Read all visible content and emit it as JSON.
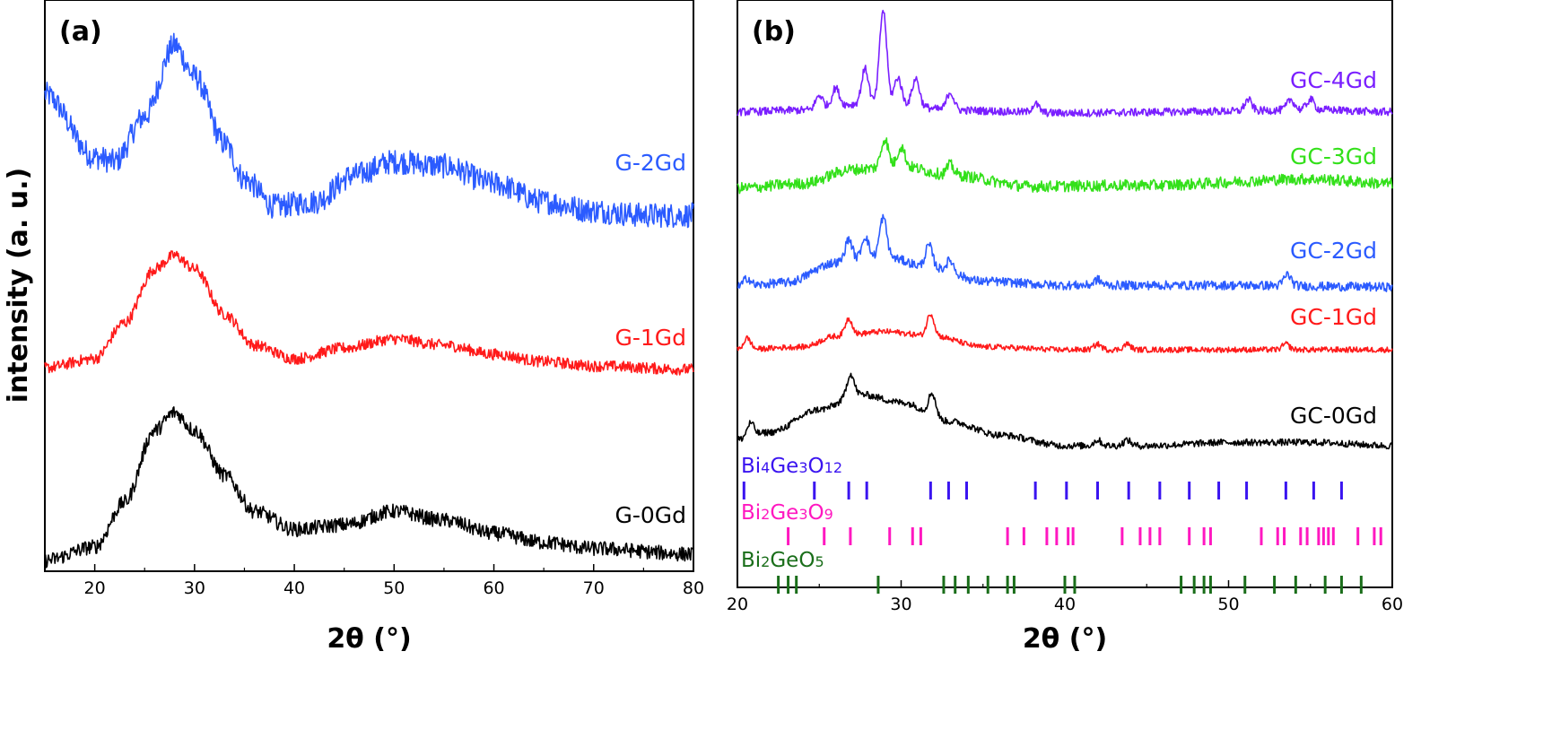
{
  "y_axis_label": "intensity (a. u.)",
  "chart_data": [
    {
      "type": "line",
      "panel": "(a)",
      "xlabel": "2θ (°)",
      "ylabel": "intensity (a. u.)",
      "xlim": [
        15,
        80
      ],
      "ylim": [
        0,
        100
      ],
      "xticks": [
        20,
        30,
        40,
        50,
        60,
        70,
        80
      ],
      "grid": false,
      "series": [
        {
          "name": "G-2Gd",
          "color": "#2b5bff",
          "noise": 2.2,
          "points": [
            [
              15,
              83.3
            ],
            [
              20,
              72.2
            ],
            [
              22,
              71.4
            ],
            [
              25,
              79.4
            ],
            [
              28,
              92
            ],
            [
              30,
              86.5
            ],
            [
              33,
              74.6
            ],
            [
              35,
              68.3
            ],
            [
              38,
              63.5
            ],
            [
              42,
              64.3
            ],
            [
              46,
              69
            ],
            [
              50,
              71.4
            ],
            [
              55,
              70.6
            ],
            [
              60,
              67.5
            ],
            [
              65,
              64.3
            ],
            [
              70,
              62.7
            ],
            [
              75,
              61.9
            ],
            [
              80,
              61.9
            ]
          ],
          "peaks": []
        },
        {
          "name": "G-1Gd",
          "color": "#ff1a1a",
          "noise": 1.0,
          "points": [
            [
              15,
              34.9
            ],
            [
              20,
              36.5
            ],
            [
              23,
              42.9
            ],
            [
              26,
              52.4
            ],
            [
              28,
              54.8
            ],
            [
              30,
              52.4
            ],
            [
              33,
              44.4
            ],
            [
              36,
              38.9
            ],
            [
              40,
              36.5
            ],
            [
              45,
              38.4
            ],
            [
              50,
              40
            ],
            [
              55,
              38.9
            ],
            [
              60,
              37.3
            ],
            [
              65,
              36
            ],
            [
              70,
              35.2
            ],
            [
              80,
              34.6
            ]
          ],
          "peaks": []
        },
        {
          "name": "G-0Gd",
          "color": "#000000",
          "noise": 1.3,
          "points": [
            [
              15,
              0.8
            ],
            [
              20,
              3.2
            ],
            [
              23,
              11.1
            ],
            [
              26,
              23.8
            ],
            [
              28,
              27
            ],
            [
              30,
              23.8
            ],
            [
              33,
              15.9
            ],
            [
              36,
              9.5
            ],
            [
              40,
              6.3
            ],
            [
              45,
              7.1
            ],
            [
              50,
              9.5
            ],
            [
              55,
              7.9
            ],
            [
              60,
              5.6
            ],
            [
              65,
              4
            ],
            [
              70,
              2.9
            ],
            [
              80,
              1.9
            ]
          ],
          "peaks": []
        }
      ]
    },
    {
      "type": "line",
      "panel": "(b)",
      "xlabel": "2θ (°)",
      "xlim": [
        20,
        60
      ],
      "ylim": [
        0,
        100
      ],
      "xticks": [
        20,
        30,
        40,
        50,
        60
      ],
      "grid": false,
      "series": [
        {
          "name": "GC-4Gd",
          "color": "#7a1fff",
          "noise": 0.7,
          "points": [
            [
              20,
              80.2
            ],
            [
              24,
              80.5
            ],
            [
              27,
              81.5
            ],
            [
              30,
              81.5
            ],
            [
              33,
              80.5
            ],
            [
              40,
              80
            ],
            [
              50,
              80.3
            ],
            [
              55,
              80.6
            ],
            [
              60,
              80.2
            ]
          ],
          "peaks": [
            [
              25,
              2.4
            ],
            [
              26,
              3.2
            ],
            [
              27.8,
              6.3
            ],
            [
              28.9,
              16.7
            ],
            [
              29.8,
              4.8
            ],
            [
              30.9,
              4.8
            ],
            [
              33,
              3.2
            ],
            [
              38.2,
              1.5
            ],
            [
              51.2,
              2
            ],
            [
              53.8,
              1.8
            ],
            [
              55,
              1.8
            ]
          ]
        },
        {
          "name": "GC-3Gd",
          "color": "#33e01a",
          "noise": 1.0,
          "points": [
            [
              20,
              66.7
            ],
            [
              24,
              67.5
            ],
            [
              27,
              70
            ],
            [
              30,
              70.6
            ],
            [
              33,
              69
            ],
            [
              38,
              67
            ],
            [
              45,
              67.2
            ],
            [
              55,
              68.3
            ],
            [
              60,
              67.5
            ]
          ],
          "peaks": [
            [
              29,
              5
            ],
            [
              30,
              3.5
            ],
            [
              33,
              1.8
            ]
          ]
        },
        {
          "name": "GC-2Gd",
          "color": "#2b5bff",
          "noise": 0.8,
          "points": [
            [
              20,
              49.2
            ],
            [
              23,
              50
            ],
            [
              26,
              53.5
            ],
            [
              29,
              54.5
            ],
            [
              32,
              52.5
            ],
            [
              35,
              50.2
            ],
            [
              40,
              49.5
            ],
            [
              50,
              49.5
            ],
            [
              60,
              49.2
            ]
          ],
          "peaks": [
            [
              20.6,
              1.5
            ],
            [
              26.8,
              4
            ],
            [
              27.8,
              4
            ],
            [
              28.9,
              7
            ],
            [
              31.7,
              4
            ],
            [
              33,
              2
            ],
            [
              42,
              1
            ],
            [
              53.6,
              2
            ]
          ]
        },
        {
          "name": "GC-1Gd",
          "color": "#ff1a1a",
          "noise": 0.5,
          "points": [
            [
              20,
              38.1
            ],
            [
              24,
              38.6
            ],
            [
              26,
              40.5
            ],
            [
              29,
              41.3
            ],
            [
              32,
              40.5
            ],
            [
              35,
              38.6
            ],
            [
              40,
              38.1
            ],
            [
              60,
              38.1
            ]
          ],
          "peaks": [
            [
              20.6,
              2
            ],
            [
              26.8,
              3
            ],
            [
              31.8,
              4
            ],
            [
              42,
              1
            ],
            [
              43.8,
              1
            ],
            [
              53.5,
              1
            ]
          ]
        },
        {
          "name": "GC-0Gd",
          "color": "#000000",
          "noise": 0.6,
          "points": [
            [
              20,
              22.2
            ],
            [
              22,
              23.5
            ],
            [
              25,
              27.5
            ],
            [
              27.5,
              30.2
            ],
            [
              30,
              28.8
            ],
            [
              33,
              25.4
            ],
            [
              36,
              23
            ],
            [
              40,
              21.1
            ],
            [
              45,
              21.1
            ],
            [
              50,
              21.7
            ],
            [
              55,
              21.7
            ],
            [
              60,
              21.1
            ]
          ],
          "peaks": [
            [
              20.8,
              2.5
            ],
            [
              26.9,
              4
            ],
            [
              31.9,
              4
            ],
            [
              42,
              1
            ],
            [
              43.8,
              1
            ]
          ]
        }
      ],
      "reference_phases": [
        {
          "name": "Bi4Ge3O12",
          "label_main": [
            "Bi",
            "Ge",
            "O"
          ],
          "label_sub": [
            "4",
            "3",
            "12"
          ],
          "color": "#3a14f0",
          "positions": [
            20.4,
            24.7,
            26.8,
            27.9,
            31.8,
            32.9,
            34.0,
            38.2,
            40.1,
            42.0,
            43.9,
            45.8,
            47.6,
            49.4,
            51.1,
            53.5,
            55.2,
            56.9
          ]
        },
        {
          "name": "Bi2Ge3O9",
          "label_main": [
            "Bi",
            "Ge",
            "O"
          ],
          "label_sub": [
            "2",
            "3",
            "9"
          ],
          "color": "#ff18c0",
          "positions": [
            23.1,
            25.3,
            26.9,
            29.3,
            30.7,
            31.2,
            36.5,
            37.5,
            38.9,
            39.5,
            40.2,
            40.5,
            43.5,
            44.6,
            45.2,
            45.8,
            47.6,
            48.5,
            48.9,
            52.0,
            53.0,
            53.4,
            54.4,
            54.8,
            55.5,
            55.8,
            56.1,
            56.4,
            57.9,
            58.9,
            59.3
          ]
        },
        {
          "name": "Bi2GeO5",
          "label_main": [
            "Bi",
            "GeO"
          ],
          "label_sub": [
            "2",
            "5"
          ],
          "color": "#1a6e1a",
          "positions": [
            22.5,
            23.1,
            23.6,
            28.6,
            32.6,
            33.3,
            34.1,
            35.3,
            36.5,
            36.9,
            40.0,
            40.6,
            47.1,
            47.9,
            48.5,
            48.9,
            51.0,
            52.8,
            54.1,
            55.9,
            56.9,
            58.1
          ]
        }
      ]
    }
  ]
}
